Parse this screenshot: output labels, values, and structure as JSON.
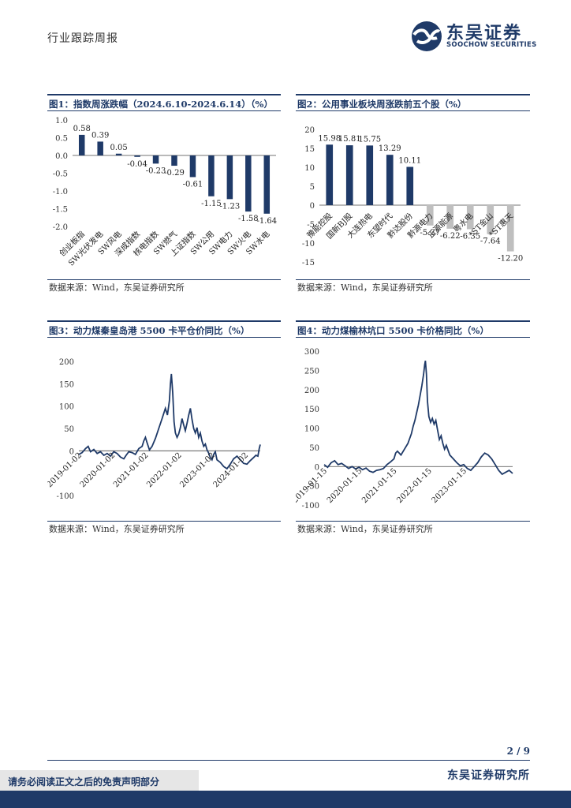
{
  "header": {
    "title": "行业跟踪周报"
  },
  "logo": {
    "cn": "东吴证券",
    "en": "SOOCHOW SECURITIES"
  },
  "figures": [
    {
      "title": "图1：指数周涨跌幅（2024.6.10-2024.6.14）（%）",
      "source": "数据来源：Wind，东吴证券研究所"
    },
    {
      "title": "图2：公用事业板块周涨跌前五个股（%）",
      "source": "数据来源：Wind，东吴证券研究所"
    },
    {
      "title": "图3：动力煤秦皇岛港 5500 卡平仓价同比（%）",
      "source": "数据来源：Wind，东吴证券研究所"
    },
    {
      "title": "图4：动力煤榆林坑口 5500 卡价格同比（%）",
      "source": "数据来源：Wind，东吴证券研究所"
    }
  ],
  "chart_data": [
    {
      "type": "bar",
      "categories": [
        "创业板指",
        "SW光伏发电",
        "SW风电",
        "深成指数",
        "核电指数",
        "SW燃气",
        "上证指数",
        "SW公用",
        "SW电力",
        "SW火电",
        "SW水电"
      ],
      "values": [
        0.58,
        0.39,
        0.05,
        -0.04,
        -0.23,
        -0.29,
        -0.61,
        -1.15,
        -1.23,
        -1.58,
        -1.64
      ],
      "data_labels": [
        "0.58",
        "0.39",
        "0.05",
        "-0.04",
        "-0.23",
        "-0.29",
        "-0.61",
        "-1.15",
        "-1.23",
        "-1.58",
        "-1.64"
      ],
      "ylim": [
        -2.0,
        1.0
      ],
      "yticks": [
        "1.0",
        "0.5",
        "0.0",
        "-0.5",
        "-1.0",
        "-1.5",
        "-2.0"
      ],
      "color": "#1f3a68"
    },
    {
      "type": "bar",
      "categories": [
        "豫能控股",
        "国新BJ股",
        "大连热电",
        "东望时代",
        "黔达股份",
        "黔源电力",
        "正源能源",
        "粤水电",
        "*ST金山",
        "*ST惠天"
      ],
      "values": [
        15.98,
        15.81,
        15.75,
        13.29,
        10.11,
        -5.37,
        -6.22,
        -6.35,
        -7.64,
        -12.2
      ],
      "data_labels": [
        "15.98",
        "15.81",
        "15.75",
        "13.29",
        "10.11",
        "-5.37",
        "-6.22",
        "-6.35",
        "-7.64",
        "-12.20"
      ],
      "ylim": [
        -15,
        20
      ],
      "yticks": [
        "20",
        "15",
        "10",
        "5",
        "0",
        "-5",
        "-10",
        "-15"
      ],
      "colors": {
        "positive": "#1f3a68",
        "negative": "#bfbfbf"
      }
    },
    {
      "type": "line",
      "x_ticks": [
        "2019-01-02",
        "2020-01-02",
        "2021-01-02",
        "2022-01-02",
        "2023-01-02",
        "2024-01-02"
      ],
      "yticks": [
        "200",
        "150",
        "100",
        "50",
        "0",
        "-100"
      ],
      "ylim": [
        -100,
        200
      ],
      "x_range": [
        2019.0,
        2024.45
      ],
      "color": "#1f3a68",
      "series": [
        {
          "points": [
            [
              2019.0,
              -8
            ],
            [
              2019.1,
              -4
            ],
            [
              2019.2,
              5
            ],
            [
              2019.28,
              10
            ],
            [
              2019.35,
              -2
            ],
            [
              2019.45,
              3
            ],
            [
              2019.55,
              -6
            ],
            [
              2019.65,
              -2
            ],
            [
              2019.75,
              -10
            ],
            [
              2019.85,
              -6
            ],
            [
              2019.95,
              -12
            ],
            [
              2020.05,
              -2
            ],
            [
              2020.15,
              -6
            ],
            [
              2020.25,
              -14
            ],
            [
              2020.35,
              -18
            ],
            [
              2020.42,
              -10
            ],
            [
              2020.5,
              -2
            ],
            [
              2020.6,
              -4
            ],
            [
              2020.7,
              -8
            ],
            [
              2020.8,
              5
            ],
            [
              2020.9,
              10
            ],
            [
              2020.95,
              22
            ],
            [
              2021.0,
              30
            ],
            [
              2021.05,
              18
            ],
            [
              2021.12,
              2
            ],
            [
              2021.2,
              10
            ],
            [
              2021.3,
              28
            ],
            [
              2021.4,
              50
            ],
            [
              2021.5,
              72
            ],
            [
              2021.6,
              95
            ],
            [
              2021.66,
              80
            ],
            [
              2021.72,
              112
            ],
            [
              2021.75,
              150
            ],
            [
              2021.78,
              172
            ],
            [
              2021.82,
              130
            ],
            [
              2021.86,
              65
            ],
            [
              2021.9,
              40
            ],
            [
              2021.95,
              30
            ],
            [
              2022.0,
              38
            ],
            [
              2022.05,
              52
            ],
            [
              2022.1,
              72
            ],
            [
              2022.15,
              58
            ],
            [
              2022.2,
              45
            ],
            [
              2022.25,
              62
            ],
            [
              2022.3,
              80
            ],
            [
              2022.35,
              95
            ],
            [
              2022.4,
              70
            ],
            [
              2022.45,
              50
            ],
            [
              2022.5,
              40
            ],
            [
              2022.55,
              52
            ],
            [
              2022.6,
              30
            ],
            [
              2022.65,
              40
            ],
            [
              2022.7,
              22
            ],
            [
              2022.75,
              10
            ],
            [
              2022.8,
              15
            ],
            [
              2022.85,
              2
            ],
            [
              2022.9,
              -5
            ],
            [
              2022.95,
              -15
            ],
            [
              2023.0,
              -20
            ],
            [
              2023.05,
              -8
            ],
            [
              2023.1,
              -2
            ],
            [
              2023.15,
              -20
            ],
            [
              2023.25,
              -26
            ],
            [
              2023.35,
              -35
            ],
            [
              2023.45,
              -40
            ],
            [
              2023.55,
              -30
            ],
            [
              2023.65,
              -18
            ],
            [
              2023.75,
              -12
            ],
            [
              2023.85,
              -20
            ],
            [
              2023.95,
              -28
            ],
            [
              2024.05,
              -30
            ],
            [
              2024.15,
              -22
            ],
            [
              2024.25,
              -15
            ],
            [
              2024.32,
              -10
            ],
            [
              2024.38,
              -12
            ],
            [
              2024.42,
              5
            ],
            [
              2024.45,
              14
            ]
          ]
        }
      ]
    },
    {
      "type": "line",
      "x_ticks": [
        "2019-01-15",
        "2020-01-15",
        "2021-01-15",
        "2022-01-15",
        "2023-01-15"
      ],
      "yticks": [
        "300",
        "250",
        "200",
        "150",
        "100",
        "50",
        "0",
        "-50",
        "-100"
      ],
      "ylim": [
        -100,
        300
      ],
      "x_range": [
        2019.0,
        2024.4
      ],
      "color": "#1f3a68",
      "series": [
        {
          "points": [
            [
              2019.0,
              5
            ],
            [
              2019.1,
              -2
            ],
            [
              2019.2,
              10
            ],
            [
              2019.3,
              15
            ],
            [
              2019.4,
              5
            ],
            [
              2019.5,
              8
            ],
            [
              2019.6,
              2
            ],
            [
              2019.7,
              -5
            ],
            [
              2019.8,
              0
            ],
            [
              2019.9,
              -6
            ],
            [
              2020.0,
              -2
            ],
            [
              2020.1,
              -8
            ],
            [
              2020.2,
              -4
            ],
            [
              2020.3,
              -12
            ],
            [
              2020.4,
              -15
            ],
            [
              2020.5,
              -10
            ],
            [
              2020.6,
              -8
            ],
            [
              2020.7,
              -5
            ],
            [
              2020.8,
              5
            ],
            [
              2020.9,
              12
            ],
            [
              2021.0,
              20
            ],
            [
              2021.05,
              35
            ],
            [
              2021.1,
              40
            ],
            [
              2021.2,
              30
            ],
            [
              2021.3,
              45
            ],
            [
              2021.4,
              60
            ],
            [
              2021.5,
              85
            ],
            [
              2021.55,
              105
            ],
            [
              2021.6,
              120
            ],
            [
              2021.65,
              140
            ],
            [
              2021.7,
              160
            ],
            [
              2021.75,
              185
            ],
            [
              2021.8,
              210
            ],
            [
              2021.85,
              240
            ],
            [
              2021.88,
              265
            ],
            [
              2021.9,
              275
            ],
            [
              2021.93,
              240
            ],
            [
              2021.96,
              170
            ],
            [
              2022.0,
              130
            ],
            [
              2022.05,
              115
            ],
            [
              2022.1,
              125
            ],
            [
              2022.15,
              110
            ],
            [
              2022.2,
              120
            ],
            [
              2022.25,
              95
            ],
            [
              2022.3,
              70
            ],
            [
              2022.35,
              80
            ],
            [
              2022.4,
              60
            ],
            [
              2022.45,
              45
            ],
            [
              2022.5,
              55
            ],
            [
              2022.6,
              30
            ],
            [
              2022.7,
              20
            ],
            [
              2022.8,
              10
            ],
            [
              2022.9,
              2
            ],
            [
              2023.0,
              5
            ],
            [
              2023.1,
              -5
            ],
            [
              2023.2,
              -10
            ],
            [
              2023.3,
              0
            ],
            [
              2023.4,
              10
            ],
            [
              2023.5,
              25
            ],
            [
              2023.6,
              35
            ],
            [
              2023.7,
              30
            ],
            [
              2023.8,
              20
            ],
            [
              2023.9,
              5
            ],
            [
              2024.0,
              -10
            ],
            [
              2024.1,
              -20
            ],
            [
              2024.2,
              -15
            ],
            [
              2024.3,
              -10
            ],
            [
              2024.4,
              -18
            ]
          ]
        }
      ]
    }
  ],
  "page": {
    "number": "2 / 9"
  },
  "footer": {
    "org": "东吴证券研究所",
    "disclaimer": "请务必阅读正文之后的免责声明部分"
  }
}
